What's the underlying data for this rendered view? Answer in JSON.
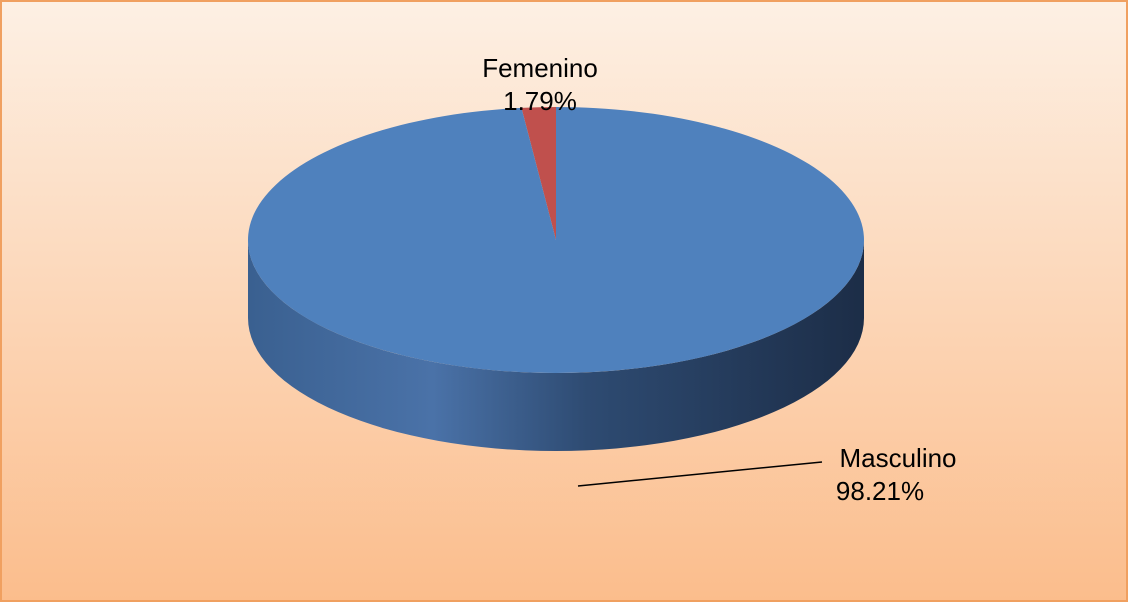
{
  "chart_data": {
    "type": "pie",
    "categories": [
      "Femenino",
      "Masculino"
    ],
    "values": [
      1.79,
      98.21
    ],
    "value_labels": [
      "1.79%",
      "98.21%"
    ],
    "colors": [
      "#c0504d",
      "#4f81bd"
    ]
  }
}
